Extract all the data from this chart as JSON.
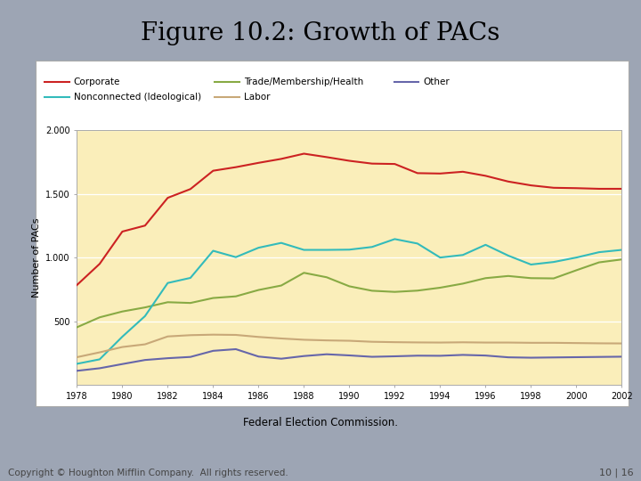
{
  "title": "Figure 10.2: Growth of PACs",
  "subtitle": "Federal Election Commission.",
  "ylabel": "Number of PACs",
  "figure_bg_color": "#9da5b4",
  "plot_bg_color": "#faeeba",
  "white_panel_color": "#ffffff",
  "years": [
    1978,
    1979,
    1980,
    1981,
    1982,
    1983,
    1984,
    1985,
    1986,
    1987,
    1988,
    1989,
    1990,
    1991,
    1992,
    1993,
    1994,
    1995,
    1996,
    1997,
    1998,
    1999,
    2000,
    2001,
    2002
  ],
  "corporate": [
    784,
    950,
    1204,
    1251,
    1469,
    1538,
    1682,
    1710,
    1744,
    1775,
    1816,
    1789,
    1760,
    1738,
    1735,
    1663,
    1660,
    1674,
    1642,
    1597,
    1567,
    1548,
    1545,
    1540,
    1540
  ],
  "trade": [
    452,
    530,
    576,
    608,
    649,
    643,
    682,
    695,
    745,
    780,
    880,
    845,
    774,
    739,
    730,
    740,
    763,
    795,
    838,
    855,
    838,
    836,
    900,
    962,
    985
  ],
  "nonconnected": [
    165,
    200,
    378,
    540,
    800,
    840,
    1053,
    1003,
    1077,
    1115,
    1060,
    1060,
    1062,
    1083,
    1145,
    1110,
    1000,
    1020,
    1100,
    1015,
    945,
    965,
    1000,
    1042,
    1060
  ],
  "labor": [
    217,
    255,
    297,
    318,
    380,
    390,
    394,
    392,
    376,
    364,
    354,
    349,
    346,
    338,
    335,
    333,
    332,
    334,
    332,
    332,
    330,
    330,
    328,
    326,
    325
  ],
  "other": [
    110,
    130,
    163,
    195,
    209,
    219,
    267,
    280,
    222,
    205,
    226,
    240,
    231,
    220,
    224,
    229,
    228,
    235,
    230,
    216,
    213,
    215,
    217,
    219,
    221
  ],
  "colors": {
    "corporate": "#cc2222",
    "trade": "#88aa44",
    "nonconnected": "#33bbbb",
    "labor": "#c8a878",
    "other": "#6666aa"
  },
  "ylim": [
    0,
    2000
  ],
  "yticks": [
    500,
    1000,
    1500,
    2000
  ],
  "ytick_labels": [
    "500",
    "1.000",
    "1.500",
    "2.000"
  ],
  "xtick_labels": [
    "1978",
    "1980",
    "1982",
    "1984",
    "1986",
    "1988",
    "1990",
    "1992",
    "1994",
    "1996",
    "1998",
    "2000",
    "2002"
  ],
  "copyright_text": "Copyright © Houghton Mifflin Company.  All rights reserved.",
  "page_text": "10 | 16"
}
